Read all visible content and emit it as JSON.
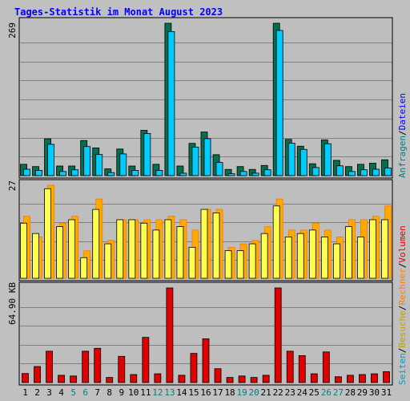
{
  "title": "Tages-Statistik im Monat August 2023",
  "colors": {
    "background": "#c0c0c0",
    "panel": "#bebebe",
    "grid": "#808080",
    "title": "#0000ff",
    "anfragen": "#00ccff",
    "anfragen_shadow": "#007050",
    "dateien": "#0000ff",
    "besuche": "#ffff50",
    "seiten": "#ffaa00",
    "seiten_shadow": "#ff7700",
    "volumen": "#e00000",
    "weekend": "#008080",
    "day_label": "#000000",
    "legend_separator": "#000000"
  },
  "axis_labels": {
    "top": "269",
    "middle": "27",
    "bottom": "64.90 KB"
  },
  "legend": {
    "upper": [
      {
        "text": "Anfragen",
        "color": "#008080"
      },
      {
        "text": "Dateien",
        "color": "#0000ff"
      }
    ],
    "lower": [
      {
        "text": "Seiten",
        "color": "#00a0c0"
      },
      {
        "text": "Besuche",
        "color": "#c0a000"
      },
      {
        "text": "Rechner",
        "color": "#ff8000"
      },
      {
        "text": "Volumen",
        "color": "#e00000"
      }
    ],
    "separator": "/"
  },
  "chart_data": {
    "type": "bar",
    "title": "Tages-Statistik im Monat August 2023",
    "categories": [
      "1",
      "2",
      "3",
      "4",
      "5",
      "6",
      "7",
      "8",
      "9",
      "10",
      "11",
      "12",
      "13",
      "14",
      "15",
      "16",
      "17",
      "18",
      "19",
      "20",
      "21",
      "22",
      "23",
      "24",
      "25",
      "26",
      "27",
      "28",
      "29",
      "30",
      "31"
    ],
    "weekend_days": [
      "5",
      "6",
      "12",
      "13",
      "19",
      "20",
      "26",
      "27"
    ],
    "panels": [
      {
        "name": "requests",
        "max_label": "269",
        "ymax": 269,
        "series": [
          {
            "name": "Anfragen",
            "values": [
              20,
              16,
              65,
              17,
              17,
              62,
              49,
              12,
              47,
              17,
              80,
              20,
              269,
              17,
              57,
              77,
              37,
              11,
              16,
              11,
              18,
              269,
              64,
              52,
              21,
              63,
              27,
              16,
              20,
              22,
              28
            ]
          },
          {
            "name": "Dateien",
            "values": [
              17,
              15,
              61,
              13,
              16,
              57,
              43,
              11,
              44,
              15,
              80,
              15,
              260,
              10,
              56,
              71,
              29,
              9,
              13,
              10,
              16,
              262,
              63,
              52,
              20,
              62,
              23,
              13,
              16,
              17,
              19
            ]
          }
        ]
      },
      {
        "name": "visits",
        "max_label": "27",
        "ymax": 27,
        "series": [
          {
            "name": "Besuche",
            "values": [
              16,
              13,
              26,
              15,
              17,
              6,
              20,
              10,
              17,
              17,
              16,
              14,
              17,
              15,
              9,
              20,
              19,
              8,
              8,
              10,
              13,
              21,
              12,
              13,
              14,
              12,
              10,
              15,
              12,
              17,
              17
            ]
          },
          {
            "name": "Seiten",
            "values": [
              18,
              12,
              27,
              16,
              18,
              8,
              23,
              11,
              17,
              17,
              17,
              17,
              18,
              17,
              14,
              20,
              20,
              9,
              10,
              11,
              15,
              23,
              14,
              14,
              16,
              14,
              12,
              17,
              17,
              18,
              21
            ]
          }
        ]
      },
      {
        "name": "traffic",
        "max_label": "64.90 KB",
        "ymax": 64.9,
        "unit": "KB",
        "series": [
          {
            "name": "Volumen",
            "values": [
              6.2,
              11.0,
              21.5,
              5.0,
              4.5,
              21.5,
              23.5,
              3.5,
              18.0,
              5.5,
              31.0,
              6.0,
              64.9,
              5.0,
              20.0,
              30.0,
              9.5,
              3.5,
              4.5,
              3.5,
              5.0,
              64.9,
              21.5,
              18.5,
              6.0,
              21.0,
              4.0,
              5.0,
              5.5,
              6.0,
              7.5
            ]
          }
        ]
      }
    ]
  }
}
